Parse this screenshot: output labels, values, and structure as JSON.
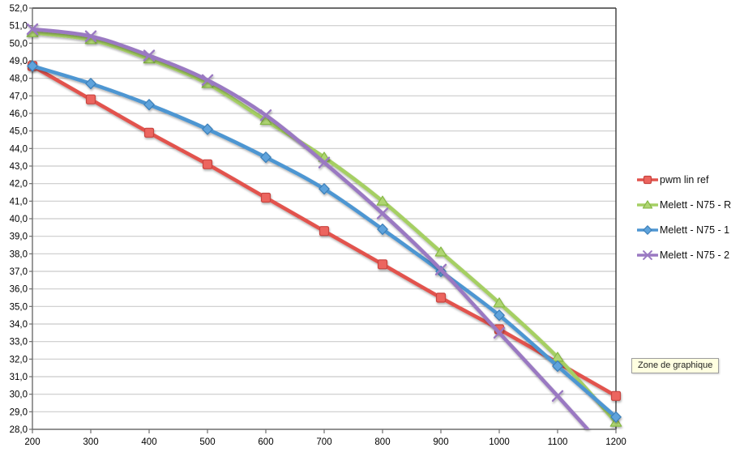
{
  "tooltip": {
    "text": "Zone de graphique"
  },
  "colors": {
    "background": "#FFFFFF",
    "gridline": "#CBCBCB",
    "axis": "#6E6E6E",
    "plot_border": "#3B3B3B"
  },
  "chart_data": {
    "type": "line",
    "title": "",
    "xlabel": "",
    "ylabel": "",
    "xlim": [
      200,
      1200
    ],
    "ylim": [
      28,
      52
    ],
    "y_step": 1,
    "x_step": 100,
    "grid": "horizontal",
    "legend_position": "right",
    "x": [
      200,
      300,
      400,
      500,
      600,
      700,
      800,
      900,
      1000,
      1100,
      1200
    ],
    "x_tick_labels": [
      "200",
      "300",
      "400",
      "500",
      "600",
      "700",
      "800",
      "900",
      "1000",
      "1100",
      "1200"
    ],
    "y_tick_labels": [
      "52,0",
      "51,0",
      "50,0",
      "49,0",
      "48,0",
      "47,0",
      "46,0",
      "45,0",
      "44,0",
      "43,0",
      "42,0",
      "41,0",
      "40,0",
      "39,0",
      "38,0",
      "37,0",
      "36,0",
      "35,0",
      "34,0",
      "33,0",
      "32,0",
      "31,0",
      "30,0",
      "29,0",
      "28,0"
    ],
    "series": [
      {
        "name": "pwm lin ref",
        "marker": "square",
        "color": "#E2534D",
        "marker_fill": "#EC655E",
        "edge": "#C74440",
        "values": [
          48.7,
          46.8,
          44.9,
          43.1,
          41.2,
          39.3,
          37.4,
          35.5,
          33.7,
          31.8,
          29.9
        ]
      },
      {
        "name": "Melett - N75 - R",
        "marker": "triangle",
        "color": "#A5CF63",
        "marker_fill": "#AFD572",
        "edge": "#86B845",
        "values": [
          50.6,
          50.2,
          49.1,
          47.7,
          45.6,
          43.5,
          41.0,
          38.1,
          35.2,
          32.1,
          28.4
        ]
      },
      {
        "name": "Melett - N75 - 1",
        "marker": "diamond",
        "color": "#4E96D2",
        "marker_fill": "#5EA3DC",
        "edge": "#3C7FB8",
        "values": [
          48.7,
          47.7,
          46.5,
          45.1,
          43.5,
          41.7,
          39.4,
          37.0,
          34.5,
          31.6,
          28.7
        ]
      },
      {
        "name": "Melett - N75 - 2",
        "marker": "x",
        "color": "#9A79C2",
        "marker_fill": "#9A79C2",
        "edge": "#8A67B4",
        "values": [
          50.8,
          50.4,
          49.3,
          47.9,
          45.9,
          43.2,
          40.3,
          37.1,
          33.5,
          29.9,
          26.2
        ]
      }
    ]
  }
}
